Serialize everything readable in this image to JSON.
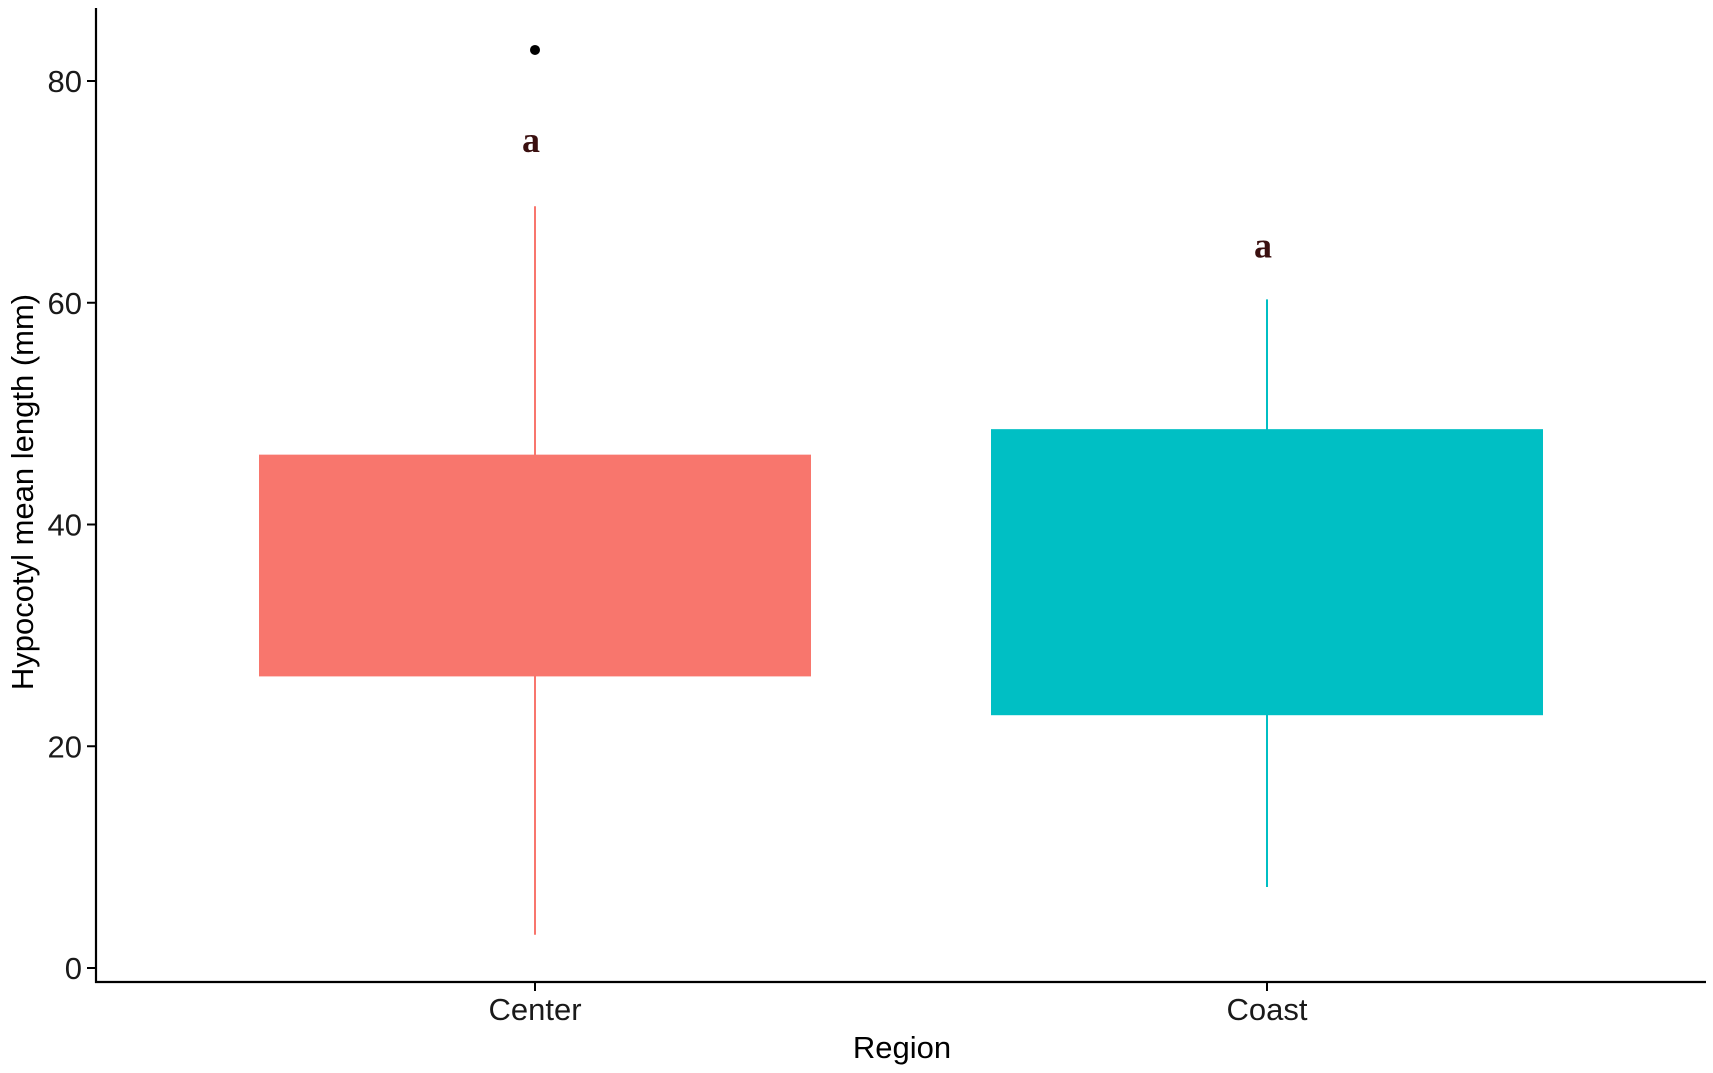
{
  "chart_data": {
    "type": "boxplot",
    "title": "",
    "xlabel": "Region",
    "ylabel": "Hypocotyl mean length (mm)",
    "ylim": [
      -1,
      86.5
    ],
    "yticks": [
      0,
      20,
      40,
      60,
      80
    ],
    "ytick_labels": [
      "0",
      "20",
      "40",
      "60",
      "80"
    ],
    "grid": false,
    "legend": "none",
    "categories": [
      "Center",
      "Coast"
    ],
    "boxes": [
      {
        "category": "Center",
        "whisker_low": 3,
        "q1": 26.3,
        "q3": 46.3,
        "whisker_high": 68.7,
        "outliers": [
          82.8
        ],
        "letter": "a",
        "letter_y": 74.5,
        "color": "#F8766D"
      },
      {
        "category": "Coast",
        "whisker_low": 7.3,
        "q1": 22.8,
        "q3": 48.6,
        "whisker_high": 60.3,
        "outliers": [],
        "letter": "a",
        "letter_y": 65,
        "color": "#00BFC4"
      }
    ]
  }
}
